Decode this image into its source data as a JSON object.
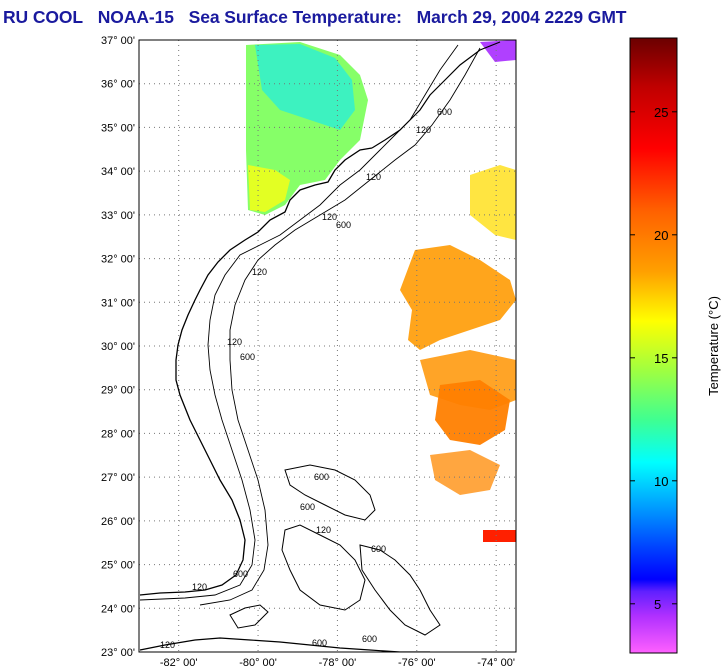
{
  "title": {
    "source": "RU COOL",
    "satellite": "NOAA-15",
    "product": "Sea Surface Temperature:",
    "datetime": "March 29, 2004 2229 GMT"
  },
  "map": {
    "lat_ticks": [
      "37° 00'",
      "36° 00'",
      "35° 00'",
      "34° 00'",
      "33° 00'",
      "32° 00'",
      "31° 00'",
      "30° 00'",
      "29° 00'",
      "28° 00'",
      "27° 00'",
      "26° 00'",
      "25° 00'",
      "24° 00'",
      "23° 00'"
    ],
    "lon_ticks": [
      "-82° 00'",
      "-80° 00'",
      "-78° 00'",
      "-76° 00'",
      "-74° 00'"
    ],
    "lat_range": [
      23,
      37
    ],
    "lon_range": [
      -83,
      -73.5
    ],
    "contour_labels": [
      "120",
      "600"
    ],
    "grid": true,
    "colors": {
      "land": "#ffffff",
      "ocean_nodata": "#ffffff",
      "grid": "#777777",
      "coast": "#000000"
    }
  },
  "colorbar": {
    "label": "Temperature (°C)",
    "ticks": [
      "25",
      "20",
      "15",
      "10",
      "5"
    ],
    "tick_values": [
      25,
      20,
      15,
      10,
      5
    ],
    "range": [
      3,
      28
    ],
    "colors_top_to_bottom": [
      "#7a0000",
      "#ff0000",
      "#ff6a00",
      "#ffd000",
      "#ffff00",
      "#80ff40",
      "#00ffc0",
      "#00c8ff",
      "#0040ff",
      "#0000ff",
      "#8000ff",
      "#ff40ff"
    ]
  }
}
